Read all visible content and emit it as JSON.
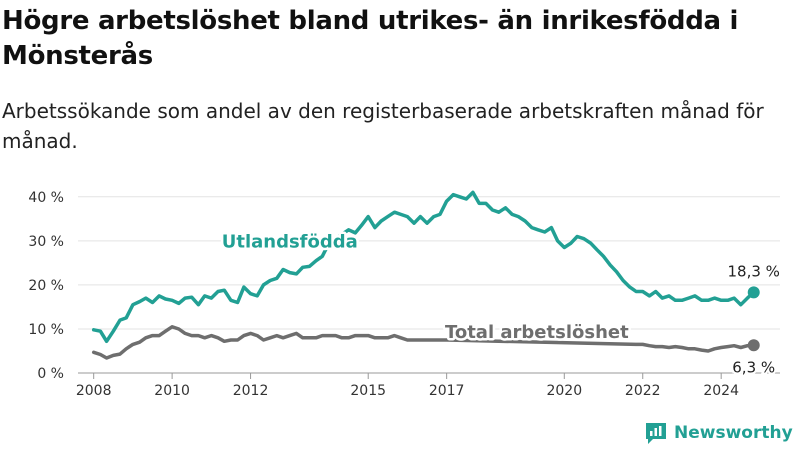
{
  "title": "Högre arbetslöshet bland utrikes- än inrikesfödda i Mönsterås",
  "subtitle": "Arbetssökande som andel av den registerbaserade arbetskraften månad för månad.",
  "brand": {
    "name": "Newsworthy",
    "color": "#22a094"
  },
  "chart_data": {
    "type": "line",
    "xlim": [
      2007.6,
      2025.5
    ],
    "ylim": [
      0,
      42
    ],
    "y_ticks": [
      {
        "value": 0,
        "label": "0 %"
      },
      {
        "value": 10,
        "label": "10 %"
      },
      {
        "value": 20,
        "label": "20 %"
      },
      {
        "value": 30,
        "label": "30 %"
      },
      {
        "value": 40,
        "label": "40 %"
      }
    ],
    "x_ticks": [
      {
        "value": 2008,
        "label": "2008"
      },
      {
        "value": 2010,
        "label": "2010"
      },
      {
        "value": 2012,
        "label": "2012"
      },
      {
        "value": 2015,
        "label": "2015"
      },
      {
        "value": 2017,
        "label": "2017"
      },
      {
        "value": 2020,
        "label": "2020"
      },
      {
        "value": 2022,
        "label": "2022"
      },
      {
        "value": 2024,
        "label": "2024"
      }
    ],
    "grid": true,
    "series": [
      {
        "name": "Utlandsfödda",
        "color": "#22a094",
        "end_label": "18,3 %",
        "points": [
          [
            2008.0,
            9.8
          ],
          [
            2008.17,
            9.5
          ],
          [
            2008.33,
            7.2
          ],
          [
            2008.5,
            9.5
          ],
          [
            2008.67,
            12.0
          ],
          [
            2008.83,
            12.5
          ],
          [
            2009.0,
            15.5
          ],
          [
            2009.17,
            16.2
          ],
          [
            2009.33,
            17.0
          ],
          [
            2009.5,
            16.0
          ],
          [
            2009.67,
            17.5
          ],
          [
            2009.83,
            16.8
          ],
          [
            2010.0,
            16.5
          ],
          [
            2010.17,
            15.8
          ],
          [
            2010.33,
            17.0
          ],
          [
            2010.5,
            17.2
          ],
          [
            2010.67,
            15.5
          ],
          [
            2010.83,
            17.5
          ],
          [
            2011.0,
            17.0
          ],
          [
            2011.17,
            18.5
          ],
          [
            2011.33,
            18.8
          ],
          [
            2011.5,
            16.5
          ],
          [
            2011.67,
            16.0
          ],
          [
            2011.83,
            19.5
          ],
          [
            2012.0,
            18.0
          ],
          [
            2012.17,
            17.5
          ],
          [
            2012.33,
            20.0
          ],
          [
            2012.5,
            21.0
          ],
          [
            2012.67,
            21.5
          ],
          [
            2012.83,
            23.5
          ],
          [
            2013.0,
            22.8
          ],
          [
            2013.17,
            22.5
          ],
          [
            2013.33,
            24.0
          ],
          [
            2013.5,
            24.2
          ],
          [
            2013.67,
            25.5
          ],
          [
            2013.83,
            26.5
          ],
          [
            2014.0,
            29.5
          ],
          [
            2014.17,
            30.5
          ],
          [
            2014.33,
            31.5
          ],
          [
            2014.5,
            32.5
          ],
          [
            2014.67,
            31.8
          ],
          [
            2014.83,
            33.5
          ],
          [
            2015.0,
            35.5
          ],
          [
            2015.17,
            33.0
          ],
          [
            2015.33,
            34.5
          ],
          [
            2015.5,
            35.5
          ],
          [
            2015.67,
            36.5
          ],
          [
            2015.83,
            36.0
          ],
          [
            2016.0,
            35.5
          ],
          [
            2016.17,
            34.0
          ],
          [
            2016.33,
            35.5
          ],
          [
            2016.5,
            34.0
          ],
          [
            2016.67,
            35.5
          ],
          [
            2016.83,
            36.0
          ],
          [
            2017.0,
            39.0
          ],
          [
            2017.17,
            40.5
          ],
          [
            2017.33,
            40.0
          ],
          [
            2017.5,
            39.5
          ],
          [
            2017.67,
            41.0
          ],
          [
            2017.83,
            38.5
          ],
          [
            2018.0,
            38.5
          ],
          [
            2018.17,
            37.0
          ],
          [
            2018.33,
            36.5
          ],
          [
            2018.5,
            37.5
          ],
          [
            2018.67,
            36.0
          ],
          [
            2018.83,
            35.5
          ],
          [
            2019.0,
            34.5
          ],
          [
            2019.17,
            33.0
          ],
          [
            2019.33,
            32.5
          ],
          [
            2019.5,
            32.0
          ],
          [
            2019.67,
            33.0
          ],
          [
            2019.83,
            30.0
          ],
          [
            2020.0,
            28.5
          ],
          [
            2020.17,
            29.5
          ],
          [
            2020.33,
            31.0
          ],
          [
            2020.5,
            30.5
          ],
          [
            2020.67,
            29.5
          ],
          [
            2020.83,
            28.0
          ],
          [
            2021.0,
            26.5
          ],
          [
            2021.17,
            24.5
          ],
          [
            2021.33,
            23.0
          ],
          [
            2021.5,
            21.0
          ],
          [
            2021.67,
            19.5
          ],
          [
            2021.83,
            18.5
          ],
          [
            2022.0,
            18.5
          ],
          [
            2022.17,
            17.5
          ],
          [
            2022.33,
            18.5
          ],
          [
            2022.5,
            17.0
          ],
          [
            2022.67,
            17.5
          ],
          [
            2022.83,
            16.5
          ],
          [
            2023.0,
            16.5
          ],
          [
            2023.17,
            17.0
          ],
          [
            2023.33,
            17.5
          ],
          [
            2023.5,
            16.5
          ],
          [
            2023.67,
            16.5
          ],
          [
            2023.83,
            17.0
          ],
          [
            2024.0,
            16.5
          ],
          [
            2024.17,
            16.5
          ],
          [
            2024.33,
            17.0
          ],
          [
            2024.5,
            15.5
          ],
          [
            2024.67,
            17.0
          ],
          [
            2024.83,
            18.3
          ]
        ]
      },
      {
        "name": "Total arbetslöshet",
        "color": "#6e6e6e",
        "end_label": "6,3 %",
        "points": [
          [
            2008.0,
            4.7
          ],
          [
            2008.17,
            4.2
          ],
          [
            2008.33,
            3.4
          ],
          [
            2008.5,
            4.0
          ],
          [
            2008.67,
            4.3
          ],
          [
            2008.83,
            5.5
          ],
          [
            2009.0,
            6.5
          ],
          [
            2009.17,
            7.0
          ],
          [
            2009.33,
            8.0
          ],
          [
            2009.5,
            8.5
          ],
          [
            2009.67,
            8.5
          ],
          [
            2009.83,
            9.5
          ],
          [
            2010.0,
            10.5
          ],
          [
            2010.17,
            10.0
          ],
          [
            2010.33,
            9.0
          ],
          [
            2010.5,
            8.5
          ],
          [
            2010.67,
            8.5
          ],
          [
            2010.83,
            8.0
          ],
          [
            2011.0,
            8.5
          ],
          [
            2011.17,
            8.0
          ],
          [
            2011.33,
            7.2
          ],
          [
            2011.5,
            7.5
          ],
          [
            2011.67,
            7.5
          ],
          [
            2011.83,
            8.5
          ],
          [
            2012.0,
            9.0
          ],
          [
            2012.17,
            8.5
          ],
          [
            2012.33,
            7.5
          ],
          [
            2012.5,
            8.0
          ],
          [
            2012.67,
            8.5
          ],
          [
            2012.83,
            8.0
          ],
          [
            2013.0,
            8.5
          ],
          [
            2013.17,
            9.0
          ],
          [
            2013.33,
            8.0
          ],
          [
            2013.5,
            8.0
          ],
          [
            2013.67,
            8.0
          ],
          [
            2013.83,
            8.5
          ],
          [
            2014.0,
            8.5
          ],
          [
            2014.17,
            8.5
          ],
          [
            2014.33,
            8.0
          ],
          [
            2014.5,
            8.0
          ],
          [
            2014.67,
            8.5
          ],
          [
            2014.83,
            8.5
          ],
          [
            2015.0,
            8.5
          ],
          [
            2015.17,
            8.0
          ],
          [
            2015.33,
            8.0
          ],
          [
            2015.5,
            8.0
          ],
          [
            2015.67,
            8.5
          ],
          [
            2015.83,
            8.0
          ],
          [
            2016.0,
            7.5
          ],
          [
            2016.17,
            7.5
          ],
          [
            2016.33,
            7.5
          ],
          [
            2016.5,
            7.5
          ],
          [
            2016.67,
            7.5
          ],
          [
            2016.83,
            7.5
          ],
          [
            2017.0,
            7.5
          ],
          [
            2021.83,
            6.5
          ],
          [
            2022.0,
            6.5
          ],
          [
            2022.17,
            6.2
          ],
          [
            2022.33,
            6.0
          ],
          [
            2022.5,
            6.0
          ],
          [
            2022.67,
            5.8
          ],
          [
            2022.83,
            6.0
          ],
          [
            2023.0,
            5.8
          ],
          [
            2023.17,
            5.5
          ],
          [
            2023.33,
            5.5
          ],
          [
            2023.5,
            5.2
          ],
          [
            2023.67,
            5.0
          ],
          [
            2023.83,
            5.5
          ],
          [
            2024.0,
            5.8
          ],
          [
            2024.17,
            6.0
          ],
          [
            2024.33,
            6.2
          ],
          [
            2024.5,
            5.8
          ],
          [
            2024.67,
            6.2
          ],
          [
            2024.83,
            6.3
          ]
        ]
      }
    ],
    "annotations": [
      {
        "text": "Utlandsfödda",
        "series": "Utlandsfödda",
        "x": 2013.0,
        "y": 28.5
      },
      {
        "text": "Total arbetslöshet",
        "series": "Total arbetslöshet",
        "x": 2019.3,
        "y": 8.0
      }
    ]
  }
}
